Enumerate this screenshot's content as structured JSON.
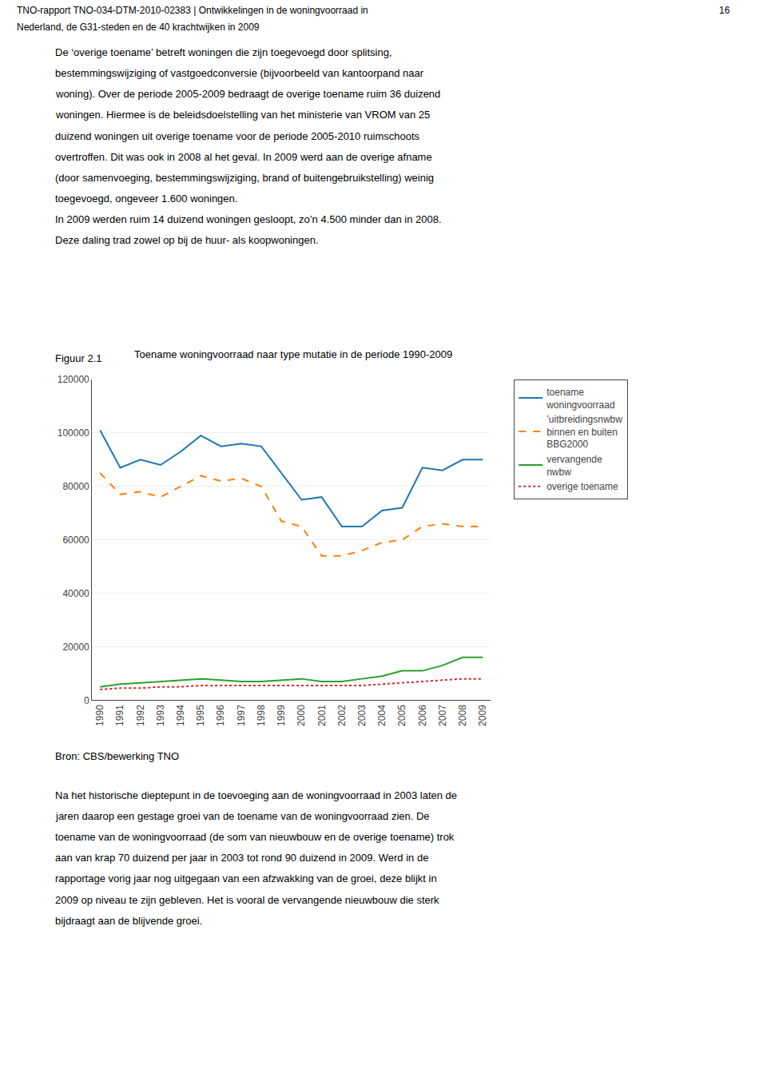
{
  "chart_data": {
    "type": "line",
    "title": "Toename woningvoorraad naar type mutatie in de periode 1990-2009",
    "x": [
      1990,
      1991,
      1992,
      1993,
      1994,
      1995,
      1996,
      1997,
      1998,
      1999,
      2000,
      2001,
      2002,
      2003,
      2004,
      2005,
      2006,
      2007,
      2008,
      2009
    ],
    "series": [
      {
        "name": "toename\nwoningvoorraad",
        "line_style": "solid",
        "values": [
          101000,
          87000,
          90000,
          88000,
          93000,
          99000,
          95000,
          96000,
          95000,
          85000,
          75000,
          76000,
          65000,
          65000,
          71000,
          72000,
          87000,
          86000,
          90000,
          90000
        ]
      },
      {
        "name": "’uitbreidingsnwbw\nbinnen en buiten\nBBG2000",
        "line_style": "dash",
        "values": [
          85000,
          77000,
          78000,
          76000,
          80000,
          84000,
          82000,
          83000,
          80000,
          67000,
          65000,
          54000,
          54000,
          56000,
          59000,
          60000,
          65000,
          66000,
          65000,
          65000
        ]
      },
      {
        "name": "vervangende\nnwbw",
        "line_style": "solid",
        "values": [
          5000,
          6000,
          6500,
          7000,
          7500,
          8000,
          7500,
          7000,
          7000,
          7500,
          8000,
          7000,
          7000,
          8000,
          9000,
          11000,
          11000,
          13000,
          16000,
          16000
        ]
      },
      {
        "name": "overige toename",
        "line_style": "dot",
        "values": [
          4000,
          4500,
          4500,
          5000,
          5000,
          5500,
          5500,
          5500,
          5500,
          5500,
          5500,
          5500,
          5500,
          5500,
          6000,
          6500,
          7000,
          7500,
          8000,
          8000
        ]
      }
    ],
    "xlim": [
      1989.6,
      2009.4
    ],
    "xticks": [
      1990,
      1991,
      1992,
      1993,
      1994,
      1995,
      1996,
      1997,
      1998,
      1999,
      2000,
      2001,
      2002,
      2003,
      2004,
      2005,
      2006,
      2007,
      2008,
      2009
    ],
    "ylim": [
      0,
      120000
    ],
    "yticks": [
      0,
      20000,
      40000,
      60000,
      80000,
      100000,
      120000
    ],
    "grid": true,
    "legend": "right",
    "annotations": [
      [
        "TNO-rapport TNO-034-DTM-2010-02383 | Ontwikkelingen in de woningvoorraad in",
        "Nederland, de G31-steden en de 40 krachtwijken in 2009"
      ],
      [
        "16"
      ],
      [
        "De ‘overige toename’ betreft woningen die zijn toegevoegd door splitsing,",
        "bestemmingswijziging of vastgoedconversie (bijvoorbeeld van kantoorpand naar",
        "woning). Over de periode 2005-2009 bedraagt de overige toename ruim 36 duizend",
        "woningen. Hiermee is de beleidsdoelstelling van het ministerie van VROM van 25",
        "duizend woningen uit overige toename voor de periode 2005-2010 ruimschoots",
        "overtroffen. Dit was ook in 2008 al het geval. In 2009 werd aan de overige afname",
        "(door samenvoeging, bestemmingswijziging, brand of buitengebruikstelling) weinig",
        "toegevoegd, ongeveer 1.600 woningen.",
        "In 2009 werden ruim 14 duizend woningen gesloopt, zo’n 4.500 minder dan in 2008.",
        "Deze daling trad zowel op bij de huur- als koopwoningen."
      ],
      [
        "Figuur 2.1"
      ],
      [
        "Bron: CBS/bewerking TNO"
      ],
      [
        "Na het historische dieptepunt in de toevoeging aan de woningvoorraad in 2003 laten de",
        "jaren daarop een gestage groei van de toename van de woningvoorraad zien. De",
        "toename van de woningvoorraad (de som van nieuwbouw en de overige toename) trok",
        "aan van krap 70 duizend per jaar in 2003 tot rond 90 duizend in 2009. Werd in de",
        "rapportage vorig jaar nog uitgegaan van een afzwakking van de groei, deze blijkt in",
        "2009 op niveau te zijn gebleven. Het is vooral de vervangende nieuwbouw die sterk",
        "bijdraagt aan de blijvende groei."
      ]
    ]
  }
}
